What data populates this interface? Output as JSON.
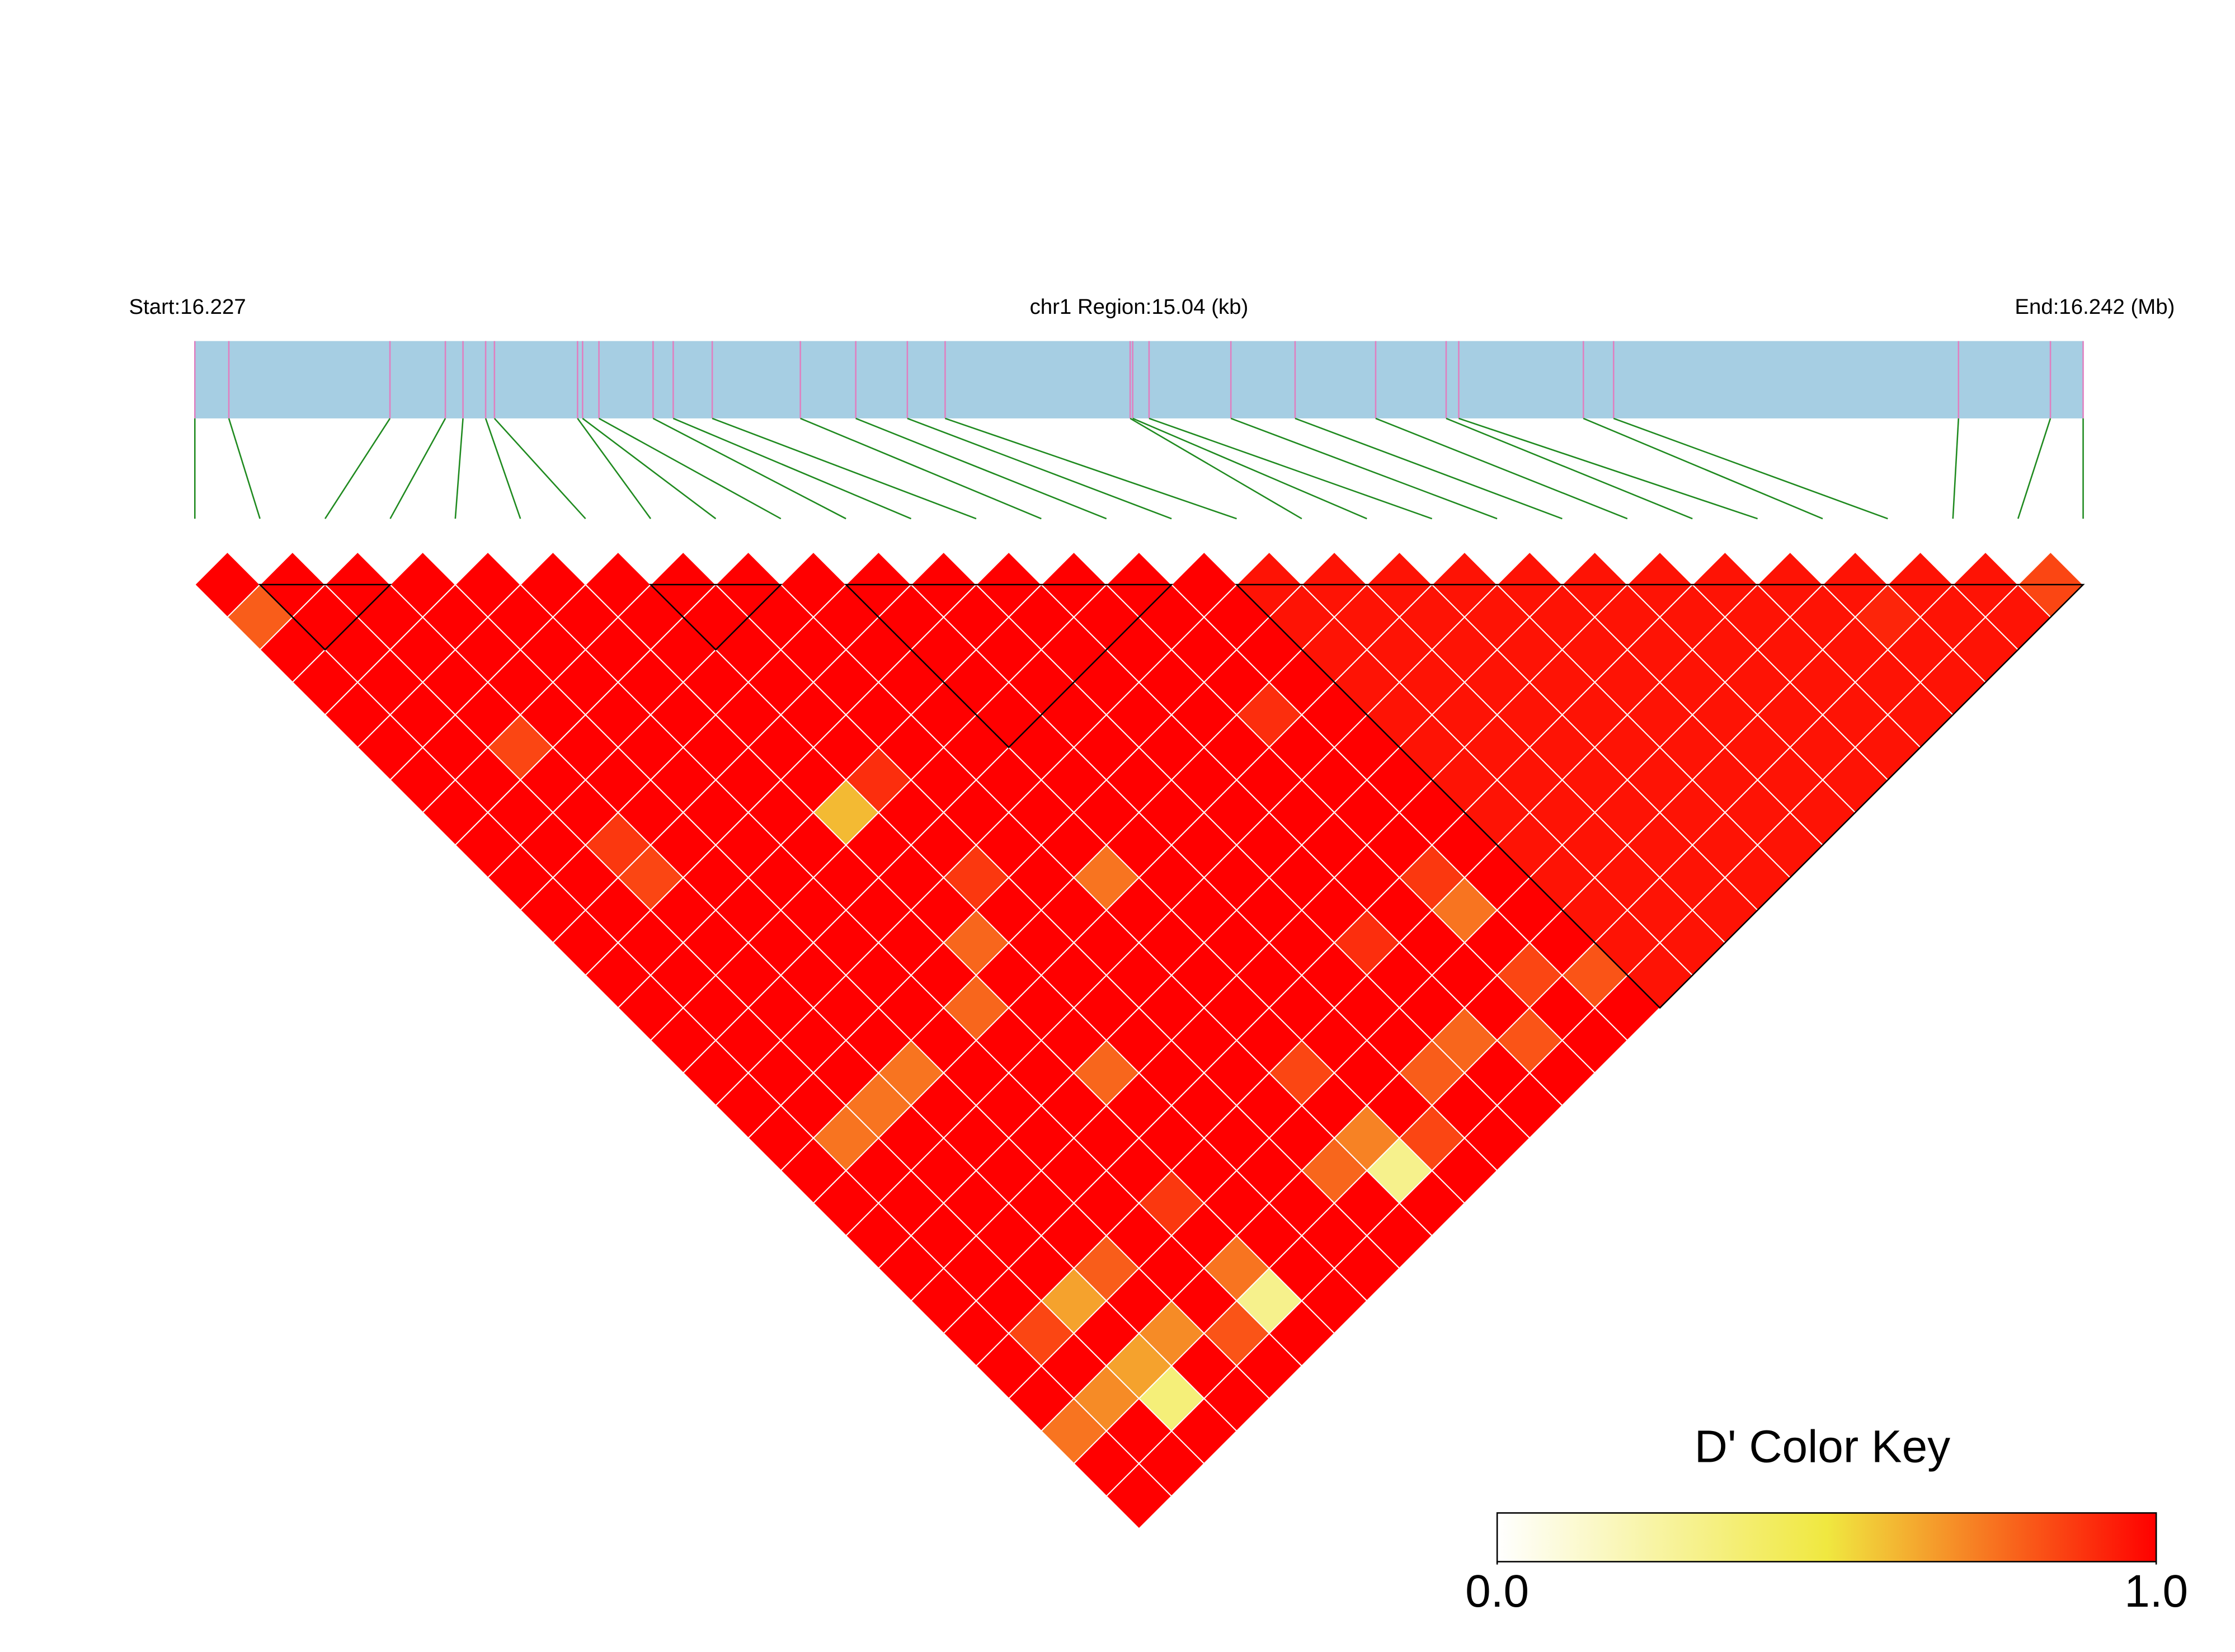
{
  "chart_data": {
    "type": "heatmap",
    "start_label": "Start:16.227",
    "region_label": "chr1 Region:15.04 (kb)",
    "end_label": "End:16.242 (Mb)",
    "xlim": [
      16.227,
      16.242
    ],
    "snp_positions": [
      16.227,
      16.22727,
      16.22855,
      16.22899,
      16.22913,
      16.22931,
      16.22938,
      16.23004,
      16.23008,
      16.23021,
      16.23064,
      16.2308,
      16.23111,
      16.23181,
      16.23225,
      16.23266,
      16.23296,
      16.23443,
      16.23445,
      16.23458,
      16.23523,
      16.23574,
      16.23638,
      16.23694,
      16.23704,
      16.23803,
      16.23827,
      16.24101,
      16.24174,
      16.242
    ],
    "values": [
      [
        1,
        0.8,
        1,
        1,
        1,
        1,
        1,
        1,
        1,
        1,
        1,
        1,
        1,
        1,
        1,
        1,
        1,
        1,
        1,
        1,
        1,
        1,
        1,
        1,
        1,
        1,
        0.75,
        1,
        1
      ],
      [
        1,
        1,
        1,
        1,
        1,
        1,
        1,
        1,
        1,
        1,
        1,
        1,
        1,
        1,
        1,
        1,
        1,
        0.75,
        1,
        1,
        1,
        1,
        1,
        0.85,
        1,
        0.7,
        1,
        1
      ],
      [
        1,
        1,
        1,
        1,
        1,
        0.85,
        1,
        1,
        0.88,
        0.85,
        1,
        1,
        1,
        1,
        1,
        1,
        0.75,
        1,
        1,
        1,
        1,
        1,
        0.65,
        1,
        0.65,
        0.35,
        1
      ],
      [
        1,
        1,
        1,
        1,
        1,
        1,
        1,
        1,
        1,
        1,
        1,
        1,
        1,
        1,
        1,
        0.75,
        1,
        1,
        1,
        1,
        1,
        0.8,
        1,
        0.7,
        1,
        1
      ],
      [
        1,
        1,
        1,
        1,
        1,
        1,
        1,
        1,
        1,
        1,
        1,
        1,
        1,
        1,
        1,
        1,
        1,
        1,
        1,
        1,
        1,
        1,
        1,
        0.82,
        1
      ],
      [
        1,
        1,
        1,
        1,
        1,
        1,
        1,
        1,
        1,
        1,
        1,
        1,
        1,
        0.78,
        1,
        1,
        1,
        1,
        1,
        0.88,
        1,
        0.75,
        0.3,
        1
      ],
      [
        1,
        1,
        1,
        1,
        1,
        1,
        1,
        0.6,
        1,
        1,
        1,
        0.78,
        1,
        1,
        1,
        0.78,
        1,
        1,
        1,
        1,
        1,
        1,
        1
      ],
      [
        1,
        1,
        1,
        1,
        1,
        1,
        0.9,
        1,
        1,
        0.88,
        1,
        1,
        1,
        1,
        1,
        1,
        1,
        1,
        1,
        1,
        1,
        1
      ],
      [
        1,
        1,
        1,
        1,
        1,
        1,
        1,
        1,
        1,
        1,
        1,
        1,
        1,
        1,
        1,
        1,
        1,
        1,
        0.78,
        1,
        1
      ],
      [
        1,
        1,
        1,
        1,
        1,
        1,
        1,
        1,
        1,
        0.75,
        1,
        1,
        1,
        1,
        1,
        0.85,
        1,
        0.72,
        0.3,
        1
      ],
      [
        1,
        1,
        1,
        1,
        1,
        1,
        1,
        1,
        1,
        1,
        1,
        1,
        1,
        1,
        1,
        1,
        1,
        0.85,
        1
      ],
      [
        1,
        1,
        1,
        1,
        1,
        1,
        1,
        1,
        1,
        1,
        1,
        1,
        1,
        1,
        1,
        0.8,
        1,
        1
      ],
      [
        1,
        1,
        1,
        1,
        1,
        1,
        1,
        1,
        1,
        1,
        1,
        0.9,
        1,
        1,
        0.78,
        1,
        1
      ],
      [
        1,
        1,
        1,
        1,
        1,
        1,
        1,
        1,
        1,
        1,
        1,
        1,
        1,
        1,
        0.82,
        1
      ],
      [
        1,
        1,
        1,
        1,
        0.9,
        1,
        1,
        1,
        1,
        0.88,
        0.75,
        1,
        0.85,
        1,
        1
      ],
      [
        1,
        1,
        1,
        1,
        1,
        1,
        1,
        1,
        1,
        1,
        1,
        1,
        0.82,
        1
      ],
      [
        0.96,
        0.96,
        0.96,
        0.96,
        0.96,
        0.96,
        0.96,
        0.96,
        0.96,
        0.96,
        0.96,
        0.96,
        0.96
      ],
      [
        0.96,
        0.96,
        0.96,
        0.96,
        0.96,
        0.96,
        0.96,
        0.96,
        0.96,
        0.96,
        0.96,
        0.96
      ],
      [
        0.96,
        0.96,
        0.96,
        0.96,
        0.96,
        0.96,
        0.96,
        0.96,
        0.96,
        0.96,
        0.96
      ],
      [
        0.96,
        0.96,
        0.96,
        0.96,
        0.96,
        0.96,
        0.96,
        0.96,
        0.96,
        0.96
      ],
      [
        0.96,
        0.96,
        0.96,
        0.96,
        0.96,
        0.96,
        0.96,
        0.96,
        0.96
      ],
      [
        0.96,
        0.96,
        0.96,
        0.96,
        0.96,
        0.96,
        0.96,
        0.96
      ],
      [
        0.96,
        0.96,
        0.96,
        0.96,
        0.96,
        0.96,
        0.96
      ],
      [
        0.96,
        0.96,
        0.96,
        0.96,
        0.96,
        0.96
      ],
      [
        0.96,
        0.96,
        0.96,
        0.96,
        0.96
      ],
      [
        0.96,
        0.92,
        0.96,
        0.96
      ],
      [
        0.96,
        0.96,
        0.96
      ],
      [
        0.96,
        0.96
      ],
      [
        0.85
      ]
    ],
    "blocks": [
      [
        1,
        3
      ],
      [
        7,
        9
      ],
      [
        10,
        15
      ],
      [
        16,
        29
      ]
    ],
    "colors": [
      "#ffffff",
      "#f0e840",
      "#ff0000"
    ],
    "colorbar_title": "D' Color Key",
    "clim": [
      0,
      1
    ],
    "cticks": [
      {
        "value": 0,
        "label": "0.0"
      },
      {
        "value": 1,
        "label": "1.0"
      }
    ]
  }
}
